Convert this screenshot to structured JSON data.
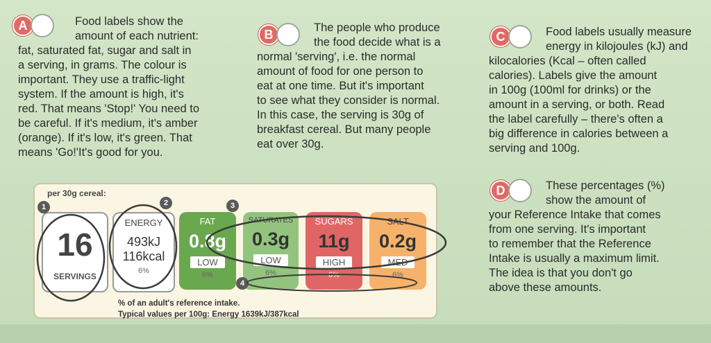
{
  "sections": {
    "a": {
      "letter": "A",
      "lines": [
        "Food labels show the",
        "amount of each nutrient:",
        "fat, saturated fat, sugar and salt in",
        "a serving, in grams. The colour is",
        "important. They use a traffic-light",
        "system. If the amount is high, it's",
        "red. That means 'Stop!' You need to",
        "be careful. If it's medium, it's amber",
        "(orange). If it's low, it's green. That",
        "means 'Go!'It's good for you."
      ]
    },
    "b": {
      "letter": "B",
      "lines": [
        "The people who produce",
        "the food decide what is a",
        "normal 'serving', i.e. the normal",
        "amount of food for one person to",
        "eat at one time. But it's important",
        "to see what they consider is normal.",
        "In this case, the serving is 30g of",
        "breakfast cereal. But many people",
        "eat over 30g."
      ]
    },
    "c": {
      "letter": "C",
      "lines": [
        "Food labels usually measure",
        "energy in kilojoules (kJ) and",
        "kilocalories (Kcal – often called",
        "calories). Labels give the amount",
        "in 100g (100ml for drinks) or the",
        "amount in a serving, or both. Read",
        "the label carefully – there's often a",
        "big difference in calories between a",
        "serving and 100g."
      ]
    },
    "d": {
      "letter": "D",
      "lines": [
        "These percentages (%)",
        "show the amount of",
        "your Reference Intake that comes",
        "from one serving. It's important",
        "to remember that the Reference",
        "Intake is usually a maximum limit.",
        "The idea is that you don't go",
        "above these amounts."
      ]
    }
  },
  "label": {
    "per": "per 30g cereal:",
    "servings": {
      "number": "16",
      "caption": "SERVINGS"
    },
    "energy": {
      "head": "ENERGY",
      "kj": "493kJ",
      "kcal": "116kcal",
      "pct": "6%"
    },
    "fat": {
      "head": "FAT",
      "value": "0.8g",
      "level": "LOW",
      "pct": "6%",
      "color": "#6aa84f"
    },
    "saturates": {
      "head": "SATURATES",
      "value": "0.3g",
      "level": "LOW",
      "pct": "6%",
      "color": "#93c47d"
    },
    "sugars": {
      "head": "SUGARS",
      "value": "11g",
      "level": "HIGH",
      "pct": "6%",
      "color": "#e06666"
    },
    "salt": {
      "head": "SALT",
      "value": "0.2g",
      "level": "MED",
      "pct": "6%",
      "color": "#f6b26b"
    },
    "footnote1": "% of an adult's reference intake.",
    "footnote2": "Typical values per 100g: Energy 1639kJ/387kcal",
    "markers": [
      "1",
      "2",
      "3",
      "4"
    ]
  }
}
